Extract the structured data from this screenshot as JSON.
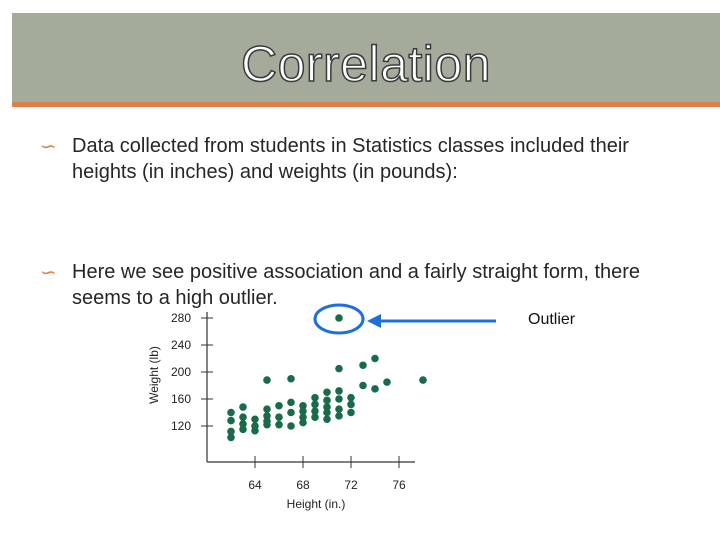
{
  "slide": {
    "title": "Correlation",
    "bullets": [
      "Data collected from students in Statistics classes included their heights (in inches) and weights (in pounds):",
      "Here we see positive association and a fairly straight form, there seems to a high outlier."
    ],
    "bullet_icon": "curl-bullet-icon",
    "callout_label": "Outlier"
  },
  "colors": {
    "title_bar": "#a5ab9a",
    "accent": "#dd8047",
    "arrow": "#1e6fd9",
    "points": "#1a6b4a"
  },
  "chart_data": {
    "type": "scatter",
    "xlabel": "Height (in.)",
    "ylabel": "Weight (lb)",
    "x_ticks": [
      64,
      68,
      72,
      76
    ],
    "y_ticks": [
      120,
      160,
      200,
      240,
      280
    ],
    "xlim": [
      61,
      77
    ],
    "ylim": [
      100,
      290
    ],
    "outlier": {
      "x": 71,
      "y": 280
    },
    "points": [
      {
        "x": 62,
        "y": 103
      },
      {
        "x": 62,
        "y": 112
      },
      {
        "x": 62,
        "y": 128
      },
      {
        "x": 62,
        "y": 140
      },
      {
        "x": 63,
        "y": 115
      },
      {
        "x": 63,
        "y": 123
      },
      {
        "x": 63,
        "y": 133
      },
      {
        "x": 63,
        "y": 148
      },
      {
        "x": 64,
        "y": 113
      },
      {
        "x": 64,
        "y": 120
      },
      {
        "x": 64,
        "y": 130
      },
      {
        "x": 65,
        "y": 122
      },
      {
        "x": 65,
        "y": 127
      },
      {
        "x": 65,
        "y": 135
      },
      {
        "x": 65,
        "y": 145
      },
      {
        "x": 65,
        "y": 188
      },
      {
        "x": 66,
        "y": 122
      },
      {
        "x": 66,
        "y": 133
      },
      {
        "x": 66,
        "y": 150
      },
      {
        "x": 67,
        "y": 120
      },
      {
        "x": 67,
        "y": 140
      },
      {
        "x": 67,
        "y": 155
      },
      {
        "x": 67,
        "y": 190
      },
      {
        "x": 68,
        "y": 125
      },
      {
        "x": 68,
        "y": 133
      },
      {
        "x": 68,
        "y": 142
      },
      {
        "x": 68,
        "y": 150
      },
      {
        "x": 69,
        "y": 133
      },
      {
        "x": 69,
        "y": 142
      },
      {
        "x": 69,
        "y": 152
      },
      {
        "x": 69,
        "y": 162
      },
      {
        "x": 70,
        "y": 130
      },
      {
        "x": 70,
        "y": 140
      },
      {
        "x": 70,
        "y": 148
      },
      {
        "x": 70,
        "y": 158
      },
      {
        "x": 71,
        "y": 135
      },
      {
        "x": 71,
        "y": 145
      },
      {
        "x": 71,
        "y": 160
      },
      {
        "x": 71,
        "y": 172
      },
      {
        "x": 72,
        "y": 140
      },
      {
        "x": 72,
        "y": 152
      },
      {
        "x": 72,
        "y": 162
      },
      {
        "x": 73,
        "y": 180
      },
      {
        "x": 74,
        "y": 175
      },
      {
        "x": 75,
        "y": 185
      },
      {
        "x": 78,
        "y": 188
      },
      {
        "x": 73,
        "y": 210
      },
      {
        "x": 74,
        "y": 220
      },
      {
        "x": 71,
        "y": 205
      },
      {
        "x": 70,
        "y": 170
      }
    ],
    "grid": false
  }
}
